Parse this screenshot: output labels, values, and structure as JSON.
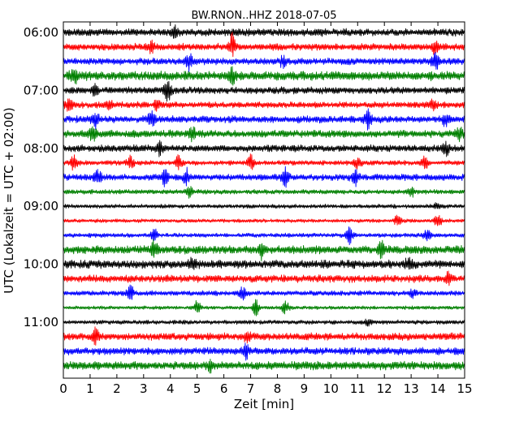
{
  "chart_data": {
    "type": "line",
    "chart_kind": "helicorder",
    "title": "BW.RNON..HHZ 2018-07-05",
    "xlabel": "Zeit  [min]",
    "ylabel": "UTC (Lokalzeit = UTC + 02:00)",
    "xlim": [
      0,
      15
    ],
    "x_ticks": [
      0,
      1,
      2,
      3,
      4,
      5,
      6,
      7,
      8,
      9,
      10,
      11,
      12,
      13,
      14,
      15
    ],
    "x_tick_labels": [
      "0",
      "1",
      "2",
      "3",
      "4",
      "5",
      "6",
      "7",
      "8",
      "9",
      "10",
      "11",
      "12",
      "13",
      "14",
      "15"
    ],
    "start_time": "06:00",
    "minutes_per_line": 15,
    "y_tick_labels": [
      "06:00",
      "07:00",
      "08:00",
      "09:00",
      "10:00",
      "11:00"
    ],
    "grid": false,
    "series_colors": [
      "#000000",
      "#ff0000",
      "#0000ff",
      "#008000"
    ],
    "lines": [
      {
        "start": "06:00",
        "color": "#000000",
        "amplitude": 0.45,
        "events": [
          [
            4.2,
            0.7
          ]
        ]
      },
      {
        "start": "06:15",
        "color": "#ff0000",
        "amplitude": 0.42,
        "events": [
          [
            6.3,
            1.6
          ],
          [
            3.3,
            0.8
          ],
          [
            13.9,
            0.7
          ]
        ]
      },
      {
        "start": "06:30",
        "color": "#0000ff",
        "amplitude": 0.42,
        "events": [
          [
            4.7,
            1.0
          ],
          [
            13.9,
            1.0
          ],
          [
            8.2,
            0.6
          ]
        ]
      },
      {
        "start": "06:45",
        "color": "#008000",
        "amplitude": 0.55,
        "events": [
          [
            0.4,
            0.9
          ],
          [
            6.3,
            1.0
          ]
        ]
      },
      {
        "start": "07:00",
        "color": "#000000",
        "amplitude": 0.42,
        "events": [
          [
            3.9,
            1.5
          ],
          [
            1.2,
            0.6
          ]
        ]
      },
      {
        "start": "07:15",
        "color": "#ff0000",
        "amplitude": 0.38,
        "events": [
          [
            0.2,
            0.8
          ],
          [
            1.7,
            0.7
          ],
          [
            3.5,
            0.7
          ],
          [
            13.8,
            0.6
          ]
        ]
      },
      {
        "start": "07:30",
        "color": "#0000ff",
        "amplitude": 0.42,
        "events": [
          [
            1.2,
            0.9
          ],
          [
            3.3,
            0.9
          ],
          [
            11.4,
            1.1
          ],
          [
            14.3,
            0.9
          ]
        ]
      },
      {
        "start": "07:45",
        "color": "#008000",
        "amplitude": 0.45,
        "events": [
          [
            1.1,
            0.8
          ],
          [
            4.8,
            0.9
          ],
          [
            14.8,
            0.8
          ]
        ]
      },
      {
        "start": "08:00",
        "color": "#000000",
        "amplitude": 0.42,
        "events": [
          [
            3.6,
            0.8
          ],
          [
            14.3,
            0.8
          ]
        ]
      },
      {
        "start": "08:15",
        "color": "#ff0000",
        "amplitude": 0.3,
        "events": [
          [
            0.4,
            0.9
          ],
          [
            2.5,
            0.9
          ],
          [
            4.3,
            1.0
          ],
          [
            7.0,
            1.0
          ],
          [
            11.0,
            0.7
          ],
          [
            13.5,
            0.8
          ]
        ]
      },
      {
        "start": "08:30",
        "color": "#0000ff",
        "amplitude": 0.4,
        "events": [
          [
            1.3,
            1.0
          ],
          [
            3.8,
            1.0
          ],
          [
            4.6,
            1.1
          ],
          [
            8.3,
            1.2
          ],
          [
            10.9,
            1.0
          ]
        ]
      },
      {
        "start": "08:45",
        "color": "#008000",
        "amplitude": 0.28,
        "events": [
          [
            4.7,
            0.6
          ],
          [
            13.0,
            0.6
          ]
        ]
      },
      {
        "start": "09:00",
        "color": "#000000",
        "amplitude": 0.25,
        "events": [
          [
            14.0,
            0.4
          ]
        ]
      },
      {
        "start": "09:15",
        "color": "#ff0000",
        "amplitude": 0.22,
        "events": [
          [
            12.5,
            0.7
          ],
          [
            14.0,
            1.0
          ]
        ]
      },
      {
        "start": "09:30",
        "color": "#0000ff",
        "amplitude": 0.26,
        "events": [
          [
            3.4,
            0.9
          ],
          [
            10.7,
            1.0
          ],
          [
            13.6,
            0.8
          ]
        ]
      },
      {
        "start": "09:45",
        "color": "#008000",
        "amplitude": 0.5,
        "events": [
          [
            3.4,
            1.0
          ],
          [
            7.4,
            1.1
          ],
          [
            11.9,
            0.9
          ]
        ]
      },
      {
        "start": "10:00",
        "color": "#000000",
        "amplitude": 0.5,
        "events": [
          [
            4.8,
            0.8
          ],
          [
            12.9,
            0.7
          ]
        ]
      },
      {
        "start": "10:15",
        "color": "#ff0000",
        "amplitude": 0.45,
        "events": [
          [
            14.4,
            0.6
          ]
        ]
      },
      {
        "start": "10:30",
        "color": "#0000ff",
        "amplitude": 0.3,
        "events": [
          [
            2.5,
            1.2
          ],
          [
            6.7,
            0.8
          ],
          [
            13.1,
            0.6
          ]
        ]
      },
      {
        "start": "10:45",
        "color": "#008000",
        "amplitude": 0.22,
        "events": [
          [
            5.0,
            0.9
          ],
          [
            7.2,
            1.0
          ],
          [
            8.3,
            0.9
          ]
        ]
      },
      {
        "start": "11:00",
        "color": "#000000",
        "amplitude": 0.26,
        "events": [
          [
            11.4,
            0.4
          ]
        ]
      },
      {
        "start": "11:15",
        "color": "#ff0000",
        "amplitude": 0.45,
        "events": [
          [
            1.2,
            0.9
          ],
          [
            6.9,
            0.7
          ]
        ]
      },
      {
        "start": "11:30",
        "color": "#0000ff",
        "amplitude": 0.45,
        "events": [
          [
            6.8,
            0.8
          ]
        ]
      },
      {
        "start": "11:45",
        "color": "#008000",
        "amplitude": 0.5,
        "events": [
          [
            5.5,
            0.6
          ]
        ]
      }
    ]
  }
}
